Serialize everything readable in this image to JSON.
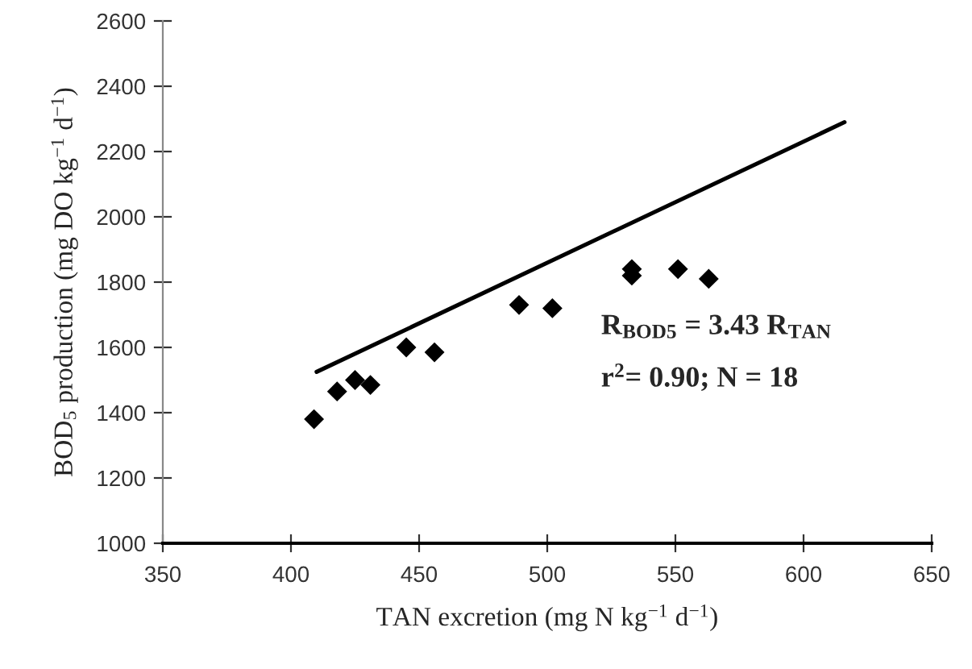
{
  "chart_data": {
    "type": "scatter",
    "xlabel": "TAN excretion (mg N kg$^{−1}$ d$^{−1}$)",
    "ylabel": "BOD$_{5}$ production (mg DO kg$^{−1}$ d$^{−1}$)",
    "series": [
      {
        "color": "#000000",
        "marker": "diamond",
        "x": [
          409,
          418,
          425,
          431,
          445,
          456,
          489,
          502,
          533,
          533,
          551,
          563
        ],
        "values": [
          1380,
          1465,
          1500,
          1485,
          1600,
          1585,
          1730,
          1720,
          1840,
          1820,
          1840,
          1810
        ]
      },
      {
        "type": "line",
        "color": "#000000",
        "marker": "none",
        "line_style": "solid",
        "x": [
          410,
          616
        ],
        "values": [
          1525,
          2290
        ]
      }
    ],
    "annotations": [
      "R$_{BOD5}$ = 3.43 R$_{TAN}$",
      "r$^{2}$= 0.90; N = 18"
    ],
    "xlim": [
      350,
      650
    ],
    "xticks": [
      350,
      400,
      450,
      500,
      550,
      600,
      650
    ],
    "ylim": [
      1000,
      2600
    ],
    "yticks": [
      1000,
      1200,
      1400,
      1600,
      1800,
      2000,
      2200,
      2400,
      2600
    ],
    "grid": false,
    "legend": false
  }
}
